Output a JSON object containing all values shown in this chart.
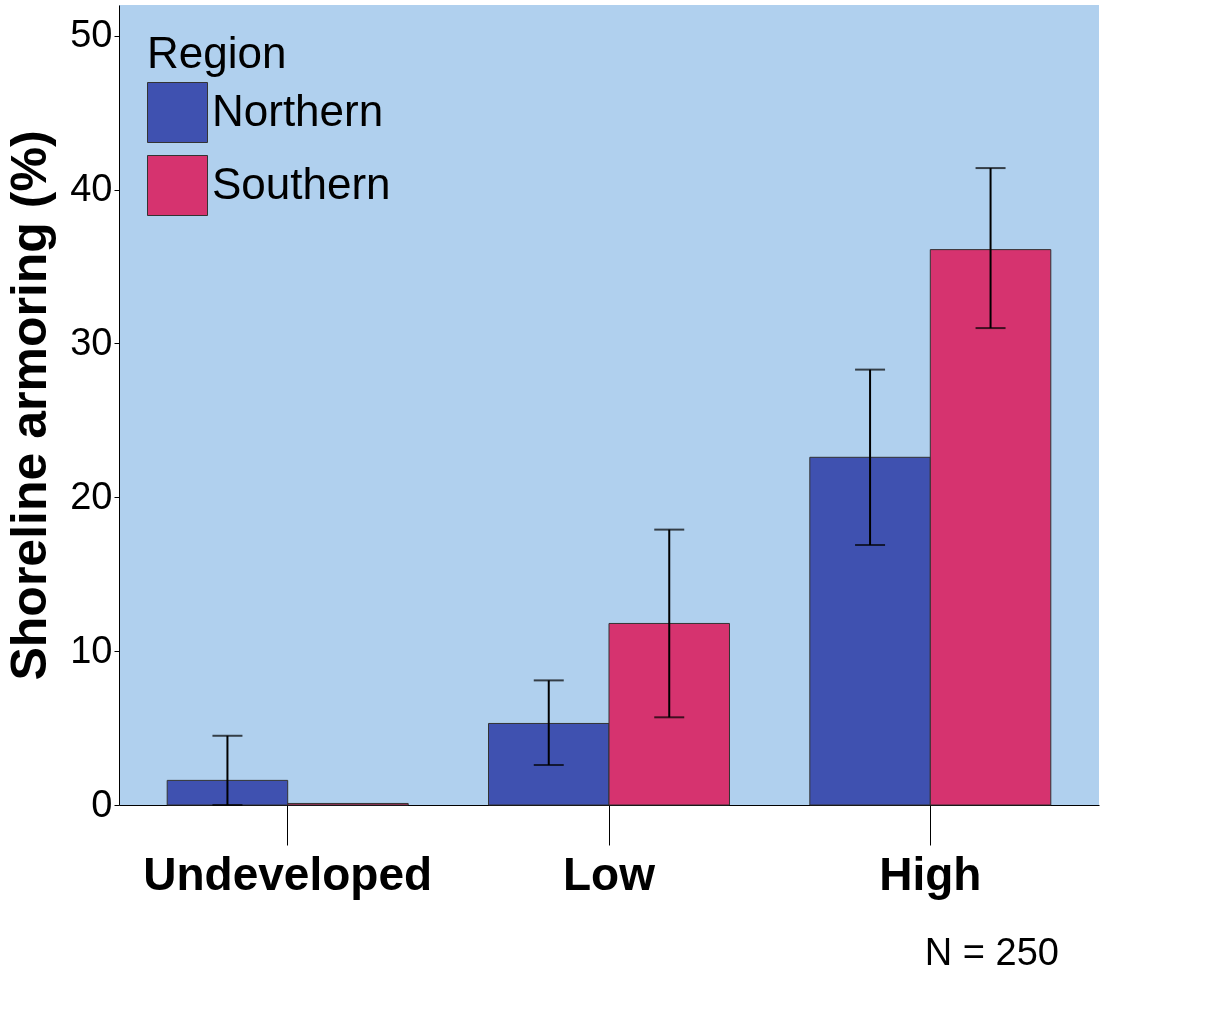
{
  "chart_data": {
    "type": "bar",
    "ylabel": "Shoreline armoring (%)",
    "legend_title": "Region",
    "categories": [
      "Undeveloped",
      "Low",
      "High"
    ],
    "series": [
      {
        "name": "Northern",
        "color": "#3f51b0",
        "values": [
          1.6,
          5.3,
          22.6
        ],
        "errors": [
          [
            0,
            4.5
          ],
          [
            2.6,
            8.1
          ],
          [
            16.9,
            28.3
          ]
        ]
      },
      {
        "name": "Southern",
        "color": "#d6336f",
        "values": [
          0.1,
          11.8,
          36.1
        ],
        "errors": [
          null,
          [
            5.7,
            17.9
          ],
          [
            31.0,
            41.4
          ]
        ]
      }
    ],
    "ylim": [
      0,
      52
    ],
    "yticks": [
      0,
      10,
      20,
      30,
      40,
      50
    ],
    "grid": false,
    "legend": "top left",
    "annotations": [
      "N = 250"
    ]
  }
}
